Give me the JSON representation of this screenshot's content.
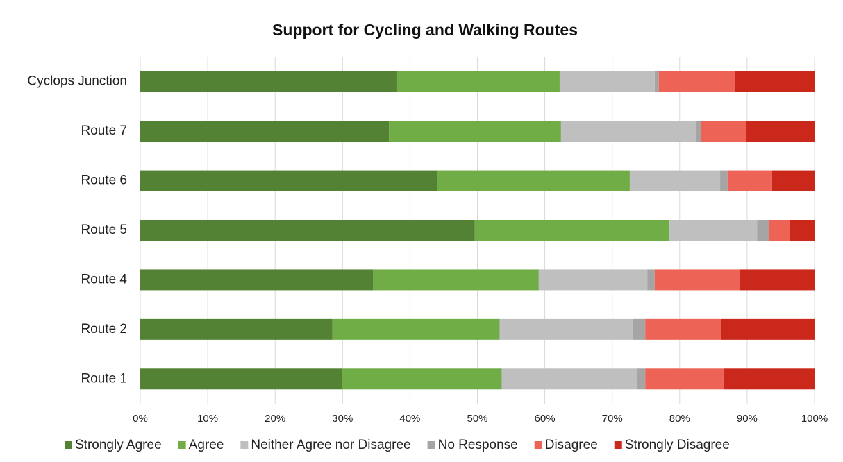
{
  "chart_data": {
    "type": "stacked-bar-horizontal",
    "title": "Support for Cycling and Walking Routes",
    "categories": [
      "Cyclops Junction",
      "Route 7",
      "Route 6",
      "Route 5",
      "Route 4",
      "Route 2",
      "Route 1"
    ],
    "series": [
      {
        "name": "Strongly Agree",
        "color": "#548235",
        "values": [
          38.0,
          36.9,
          44.0,
          49.6,
          34.5,
          28.5,
          29.9
        ]
      },
      {
        "name": "Agree",
        "color": "#70ad47",
        "values": [
          24.2,
          25.5,
          28.6,
          28.9,
          24.6,
          24.8,
          23.7
        ]
      },
      {
        "name": "Neither Agree nor Disagree",
        "color": "#bfbfbf",
        "values": [
          14.1,
          20.0,
          13.4,
          13.0,
          16.1,
          19.7,
          20.1
        ]
      },
      {
        "name": "No Response",
        "color": "#a5a5a5",
        "values": [
          0.6,
          0.8,
          1.1,
          1.7,
          1.1,
          1.9,
          1.2
        ]
      },
      {
        "name": "Disagree",
        "color": "#ed6457",
        "values": [
          11.3,
          6.7,
          6.6,
          3.1,
          12.6,
          11.2,
          11.6
        ]
      },
      {
        "name": "Strongly Disagree",
        "color": "#c9281a",
        "values": [
          11.8,
          10.1,
          6.3,
          3.7,
          11.1,
          13.9,
          13.5
        ]
      }
    ],
    "xlim": [
      0,
      100
    ],
    "xticks": [
      {
        "value": 0,
        "label": "0%"
      },
      {
        "value": 10,
        "label": "10%"
      },
      {
        "value": 20,
        "label": "20%"
      },
      {
        "value": 30,
        "label": "30%"
      },
      {
        "value": 40,
        "label": "40%"
      },
      {
        "value": 50,
        "label": "50%"
      },
      {
        "value": 60,
        "label": "60%"
      },
      {
        "value": 70,
        "label": "70%"
      },
      {
        "value": 80,
        "label": "80%"
      },
      {
        "value": 90,
        "label": "90%"
      },
      {
        "value": 100,
        "label": "100%"
      }
    ],
    "grid": true,
    "legend": "bottom"
  }
}
